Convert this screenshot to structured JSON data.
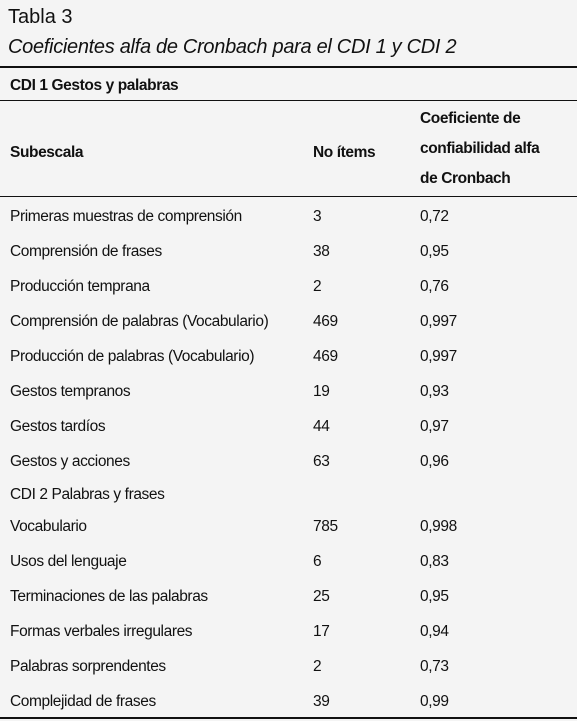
{
  "header": {
    "title": "Tabla 3",
    "subtitle": "Coeficientes alfa de Cronbach para el CDI 1 y CDI 2"
  },
  "table": {
    "section_1": "CDI 1 Gestos y palabras",
    "columns": [
      "Subescala",
      "No ítems",
      "Coeficiente de confiabilidad alfa de Cronbach"
    ],
    "rows": [
      [
        "Primeras muestras de comprensión",
        "3",
        "0,72"
      ],
      [
        "Comprensión de frases",
        "38",
        "0,95"
      ],
      [
        "Producción temprana",
        "2",
        "0,76"
      ],
      [
        "Comprensión de palabras (Vocabulario)",
        "469",
        "0,997"
      ],
      [
        "Producción de palabras (Vocabulario)",
        "469",
        "0,997"
      ],
      [
        "Gestos tempranos",
        "19",
        "0,93"
      ],
      [
        "Gestos tardíos",
        "44",
        "0,97"
      ],
      [
        "Gestos y acciones",
        "63",
        "0,96"
      ]
    ],
    "section_2": "CDI 2 Palabras y frases",
    "rows_2": [
      [
        "Vocabulario",
        "785",
        "0,998"
      ],
      [
        "Usos del lenguaje",
        "6",
        "0,83"
      ],
      [
        "Terminaciones de las palabras",
        "25",
        "0,95"
      ],
      [
        "Formas verbales irregulares",
        "17",
        "0,94"
      ],
      [
        "Palabras sorprendentes",
        "2",
        "0,73"
      ],
      [
        "Complejidad de frases",
        "39",
        "0,99"
      ]
    ]
  }
}
